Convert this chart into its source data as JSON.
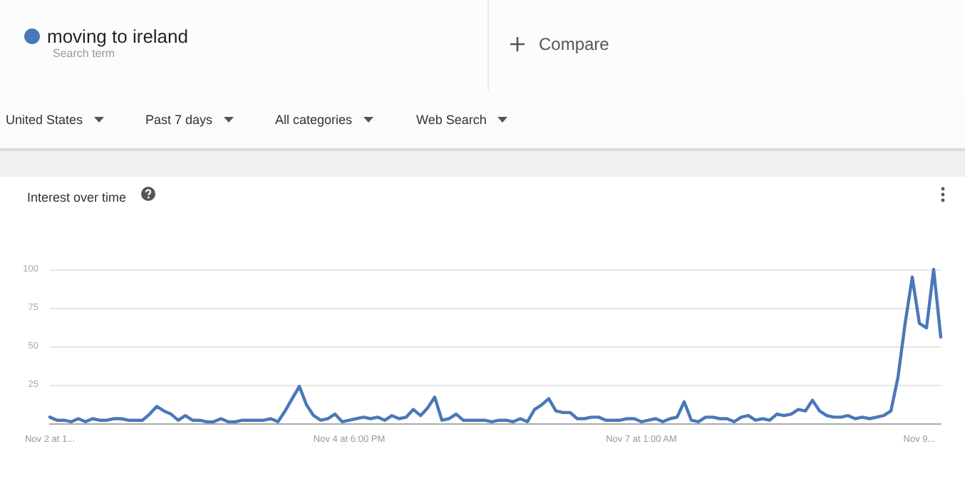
{
  "chart_data": {
    "type": "line",
    "title": "Interest over time",
    "annotations": [
      "Search term",
      "Compare",
      "United States",
      "Past 7 days",
      "All categories",
      "Web Search"
    ],
    "categories": [
      "Nov 2 at 1...",
      null,
      null,
      null,
      null,
      null,
      null,
      null,
      null,
      null,
      null,
      null,
      null,
      null,
      null,
      null,
      null,
      null,
      null,
      null,
      null,
      null,
      null,
      null,
      null,
      null,
      null,
      null,
      null,
      null,
      null,
      null,
      null,
      null,
      null,
      null,
      null,
      null,
      null,
      null,
      null,
      null,
      "Nov 4 at 6:00 PM",
      null,
      null,
      null,
      null,
      null,
      null,
      null,
      null,
      null,
      null,
      null,
      null,
      null,
      null,
      null,
      null,
      null,
      null,
      null,
      null,
      null,
      null,
      null,
      null,
      null,
      null,
      null,
      null,
      null,
      null,
      null,
      null,
      null,
      null,
      null,
      null,
      null,
      null,
      null,
      null,
      "Nov 7 at 1:00 AM",
      null,
      null,
      null,
      null,
      null,
      null,
      null,
      null,
      null,
      null,
      null,
      null,
      null,
      null,
      null,
      null,
      null,
      null,
      null,
      null,
      null,
      null,
      null,
      null,
      null,
      null,
      null,
      null,
      null,
      null,
      null,
      null,
      null,
      null,
      null,
      null,
      null,
      null,
      "Nov 9...",
      null,
      null,
      null
    ],
    "series": [
      {
        "name": "moving to ireland",
        "color": "#4a78b8",
        "values": [
          4,
          2,
          2,
          1,
          3,
          1,
          3,
          2,
          2,
          3,
          3,
          2,
          2,
          2,
          6,
          11,
          8,
          6,
          2,
          5,
          2,
          2,
          1,
          1,
          3,
          1,
          1,
          2,
          2,
          2,
          2,
          3,
          1,
          8,
          16,
          24,
          12,
          5,
          2,
          3,
          6,
          1,
          2,
          3,
          4,
          3,
          4,
          2,
          5,
          3,
          4,
          9,
          5,
          10,
          17,
          2,
          3,
          6,
          2,
          2,
          2,
          2,
          1,
          2,
          2,
          1,
          3,
          1,
          9,
          12,
          16,
          8,
          7,
          7,
          3,
          3,
          4,
          4,
          2,
          2,
          2,
          3,
          3,
          1,
          2,
          3,
          1,
          3,
          4,
          14,
          2,
          1,
          4,
          4,
          3,
          3,
          1,
          4,
          5,
          2,
          3,
          2,
          6,
          5,
          6,
          9,
          8,
          15,
          8,
          5,
          4,
          4,
          5,
          3,
          4,
          3,
          4,
          5,
          8,
          30,
          65,
          95,
          65,
          62,
          100,
          56
        ]
      }
    ],
    "ylim": [
      0,
      100
    ],
    "yticks": [
      25,
      50,
      75,
      100
    ],
    "grid": "y",
    "legend": "top left",
    "marker": "none",
    "line_style": "solid"
  }
}
